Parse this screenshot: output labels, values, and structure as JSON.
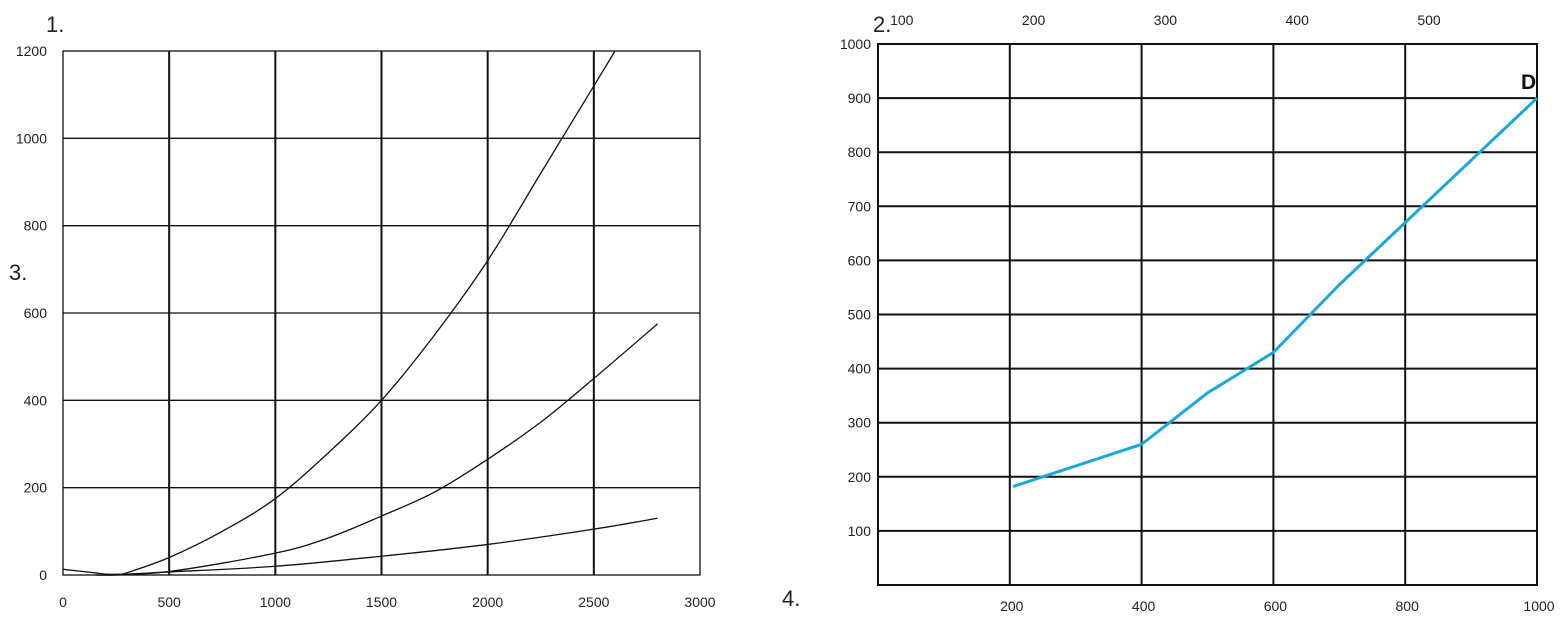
{
  "labels": {
    "n1": "1.",
    "n2": "2.",
    "n3": "3.",
    "n4": "4."
  },
  "chart_data": [
    {
      "type": "line",
      "xlim": [
        0,
        3000
      ],
      "ylim": [
        0,
        1200
      ],
      "x_ticks": [
        "0",
        "500",
        "1000",
        "1500",
        "2000",
        "2500",
        "3000"
      ],
      "y_ticks": [
        "0",
        "200",
        "400",
        "600",
        "800",
        "1000",
        "1200"
      ],
      "grid": true,
      "series": [
        {
          "x": [
            150,
            250,
            300,
            500,
            750,
            1000,
            1250,
            1500,
            1750,
            2000,
            2250,
            2500,
            2600
          ],
          "y": [
            0,
            0,
            5,
            40,
            100,
            175,
            280,
            400,
            550,
            720,
            920,
            1120,
            1200
          ]
        },
        {
          "x": [
            200,
            500,
            1000,
            1250,
            1500,
            1750,
            2000,
            2250,
            2500,
            2800
          ],
          "y": [
            0,
            8,
            50,
            85,
            135,
            190,
            265,
            350,
            450,
            575
          ]
        },
        {
          "x": [
            0,
            150,
            200,
            300,
            500,
            1000,
            1500,
            2000,
            2500,
            2800
          ],
          "y": [
            13,
            5,
            2,
            2,
            7,
            20,
            43,
            70,
            105,
            130
          ]
        }
      ]
    },
    {
      "type": "line",
      "xlim": [
        0,
        1000
      ],
      "ylim": [
        0,
        1000
      ],
      "x_ticks": [
        "200",
        "400",
        "600",
        "800",
        "1000"
      ],
      "x2_ticks": [
        "100",
        "200",
        "300",
        "400",
        "500"
      ],
      "y_ticks": [
        "100",
        "200",
        "300",
        "400",
        "500",
        "600",
        "700",
        "800",
        "900",
        "1000"
      ],
      "grid": true,
      "annotation": "D",
      "color": "#1aa7dc",
      "series": [
        {
          "x": [
            205,
            400,
            500,
            600,
            700,
            800,
            900,
            1000
          ],
          "y": [
            182,
            260,
            355,
            430,
            555,
            670,
            785,
            900
          ]
        }
      ]
    }
  ]
}
